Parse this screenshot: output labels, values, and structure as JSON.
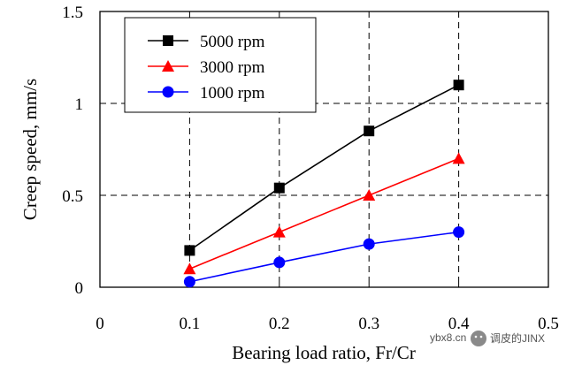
{
  "chart_data": {
    "type": "line",
    "title": "",
    "xlabel": "Bearing load ratio, Fr/Cr",
    "ylabel": "Creep speed, mm/s",
    "xlim": [
      0,
      0.5
    ],
    "ylim": [
      0,
      1.5
    ],
    "xticks": [
      "0",
      "0.1",
      "0.2",
      "0.3",
      "0.4",
      "0.5"
    ],
    "yticks": [
      "0",
      "0.5",
      "1",
      "1.5"
    ],
    "grid": "dashed, at x = 0.1–0.4 and y = 0.5, 1",
    "legend_position": "top-left",
    "series": [
      {
        "name": "5000 rpm",
        "color": "#000000",
        "marker": "square",
        "x": [
          0.1,
          0.2,
          0.3,
          0.4
        ],
        "y": [
          0.2,
          0.54,
          0.85,
          1.1
        ]
      },
      {
        "name": "3000 rpm",
        "color": "#ff0000",
        "marker": "triangle",
        "x": [
          0.1,
          0.2,
          0.3,
          0.4
        ],
        "y": [
          0.1,
          0.3,
          0.5,
          0.7
        ]
      },
      {
        "name": "1000 rpm",
        "color": "#0000ff",
        "marker": "circle",
        "x": [
          0.1,
          0.2,
          0.3,
          0.4
        ],
        "y": [
          0.03,
          0.135,
          0.235,
          0.3
        ]
      }
    ]
  },
  "watermark": {
    "site": "ybx8.cn",
    "account": "调皮的JINX",
    "icon": "wechat-icon"
  }
}
